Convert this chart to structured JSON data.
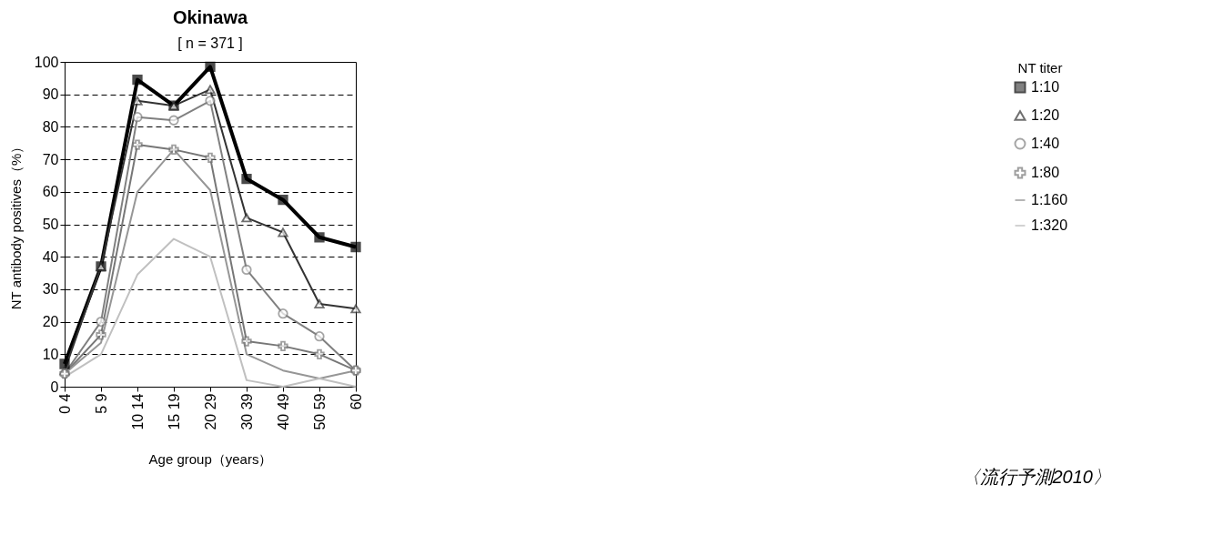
{
  "chart_data": {
    "type": "line",
    "title": "Okinawa",
    "subtitle": "[ n = 371 ]",
    "xlabel": "Age group（years）",
    "ylabel": "NT antibody positives（%）",
    "legend_title": "NT titer",
    "categories": [
      "0 4",
      "5 9",
      "10 14",
      "15 19",
      "20 29",
      "30 39",
      "40 49",
      "50 59",
      "60"
    ],
    "series": [
      {
        "name": "1:10",
        "color": "#000000",
        "marker": "square",
        "values": [
          7,
          37,
          94.5,
          86.5,
          98.5,
          64,
          57.5,
          46,
          43
        ]
      },
      {
        "name": "1:20",
        "color": "#333333",
        "marker": "triangle",
        "values": [
          5,
          37,
          88,
          86.5,
          91.5,
          52,
          47.5,
          25.5,
          24
        ]
      },
      {
        "name": "1:40",
        "color": "#808080",
        "marker": "circle",
        "values": [
          4,
          20,
          83,
          82,
          88,
          36,
          22.5,
          15.5,
          5
        ]
      },
      {
        "name": "1:80",
        "color": "#777777",
        "marker": "cross",
        "values": [
          4,
          16,
          74.5,
          73,
          70.5,
          14,
          12.5,
          10,
          5
        ]
      },
      {
        "name": "1:160",
        "color": "#969696",
        "marker": "none",
        "values": [
          4,
          13.5,
          60,
          73,
          60.5,
          10,
          5,
          2.5,
          5
        ]
      },
      {
        "name": "1:320",
        "color": "#c0c0c0",
        "marker": "none",
        "values": [
          3,
          10,
          34.5,
          45.5,
          40,
          2,
          0,
          2.5,
          0
        ]
      }
    ],
    "ylim": [
      0,
      100
    ],
    "yticks": [
      0,
      10,
      20,
      30,
      40,
      50,
      60,
      70,
      80,
      90,
      100
    ],
    "grid": "y",
    "legend": "right",
    "line_style": "solid",
    "annotations": [
      "〈流行予測2010〉"
    ]
  }
}
